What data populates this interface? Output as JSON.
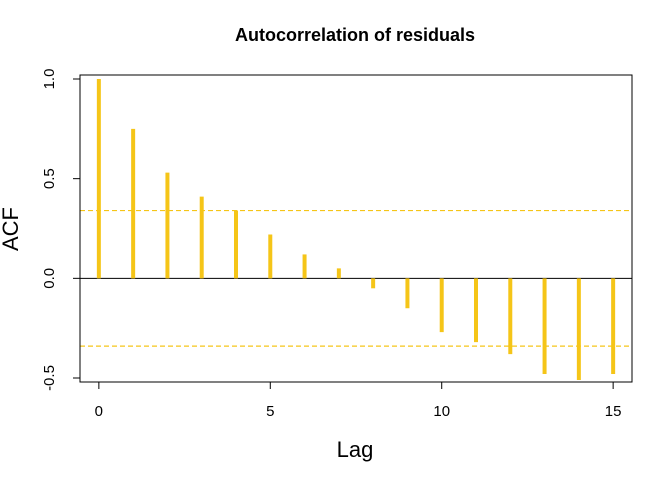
{
  "chart_data": {
    "type": "bar",
    "title": "Autocorrelation of residuals",
    "xlabel": "Lag",
    "ylabel": "ACF",
    "xlim": [
      -0.55,
      15.55
    ],
    "ylim": [
      -0.52,
      1.02
    ],
    "x_ticks": [
      0,
      5,
      10,
      15
    ],
    "y_ticks": [
      -0.5,
      0.0,
      0.5,
      1.0
    ],
    "x_tick_labels": [
      "0",
      "5",
      "10",
      "15"
    ],
    "y_tick_labels": [
      "-0.5",
      "0.0",
      "0.5",
      "1.0"
    ],
    "lags": [
      0,
      1,
      2,
      3,
      4,
      5,
      6,
      7,
      8,
      9,
      10,
      11,
      12,
      13,
      14,
      15
    ],
    "values": [
      1.0,
      0.75,
      0.53,
      0.41,
      0.34,
      0.22,
      0.12,
      0.05,
      -0.05,
      -0.15,
      -0.27,
      -0.32,
      -0.38,
      -0.48,
      -0.51,
      -0.48
    ],
    "confidence_bounds": [
      0.34,
      -0.34
    ],
    "colors": {
      "bars": "#f5c518",
      "bounds": "#f5c518",
      "zero_line": "#000000",
      "frame": "#000000"
    },
    "grid": false
  }
}
